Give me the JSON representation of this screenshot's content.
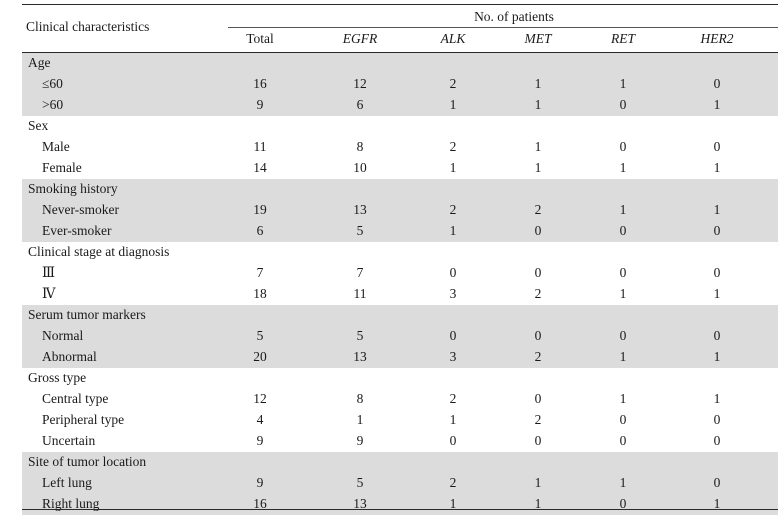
{
  "header": {
    "characteristics_label": "Clinical characteristics",
    "patients_label": "No. of patients",
    "columns": [
      "Total",
      "EGFR",
      "ALK",
      "MET",
      "RET",
      "HER2"
    ]
  },
  "groups": [
    {
      "title": "Age",
      "shaded": true,
      "rows": [
        {
          "label": "≤60",
          "values": [
            "16",
            "12",
            "2",
            "1",
            "1",
            "0"
          ]
        },
        {
          "label": ">60",
          "values": [
            "9",
            "6",
            "1",
            "1",
            "0",
            "1"
          ]
        }
      ]
    },
    {
      "title": "Sex",
      "shaded": false,
      "rows": [
        {
          "label": "Male",
          "values": [
            "11",
            "8",
            "2",
            "1",
            "0",
            "0"
          ]
        },
        {
          "label": "Female",
          "values": [
            "14",
            "10",
            "1",
            "1",
            "1",
            "1"
          ]
        }
      ]
    },
    {
      "title": "Smoking history",
      "shaded": true,
      "rows": [
        {
          "label": "Never-smoker",
          "values": [
            "19",
            "13",
            "2",
            "2",
            "1",
            "1"
          ]
        },
        {
          "label": "Ever-smoker",
          "values": [
            "6",
            "5",
            "1",
            "0",
            "0",
            "0"
          ]
        }
      ]
    },
    {
      "title": "Clinical stage at diagnosis",
      "shaded": false,
      "rows": [
        {
          "label": "Ⅲ",
          "values": [
            "7",
            "7",
            "0",
            "0",
            "0",
            "0"
          ]
        },
        {
          "label": "Ⅳ",
          "values": [
            "18",
            "11",
            "3",
            "2",
            "1",
            "1"
          ]
        }
      ]
    },
    {
      "title": "Serum tumor markers",
      "shaded": true,
      "rows": [
        {
          "label": "Normal",
          "values": [
            "5",
            "5",
            "0",
            "0",
            "0",
            "0"
          ]
        },
        {
          "label": "Abnormal",
          "values": [
            "20",
            "13",
            "3",
            "2",
            "1",
            "1"
          ]
        }
      ]
    },
    {
      "title": "Gross type",
      "shaded": false,
      "rows": [
        {
          "label": "Central type",
          "values": [
            "12",
            "8",
            "2",
            "0",
            "1",
            "1"
          ]
        },
        {
          "label": "Peripheral type",
          "values": [
            "4",
            "1",
            "1",
            "2",
            "0",
            "0"
          ]
        },
        {
          "label": "Uncertain",
          "values": [
            "9",
            "9",
            "0",
            "0",
            "0",
            "0"
          ]
        }
      ]
    },
    {
      "title": "Site of tumor location",
      "shaded": true,
      "rows": [
        {
          "label": "Left lung",
          "values": [
            "9",
            "5",
            "2",
            "1",
            "1",
            "0"
          ]
        },
        {
          "label": "Right lung",
          "values": [
            "16",
            "13",
            "1",
            "1",
            "0",
            "1"
          ]
        }
      ]
    }
  ]
}
